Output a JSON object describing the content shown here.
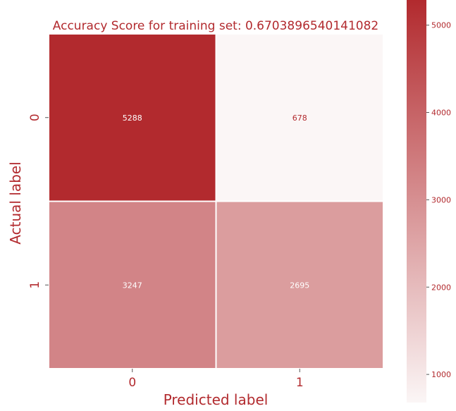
{
  "chart_data": {
    "type": "heatmap",
    "title": "Accuracy Score for training set: 0.6703896540141082",
    "xlabel": "Predicted label",
    "ylabel": "Actual label",
    "x_categories": [
      "0",
      "1"
    ],
    "y_categories": [
      "0",
      "1"
    ],
    "values": [
      [
        5288,
        678
      ],
      [
        3247,
        2695
      ]
    ],
    "colorbar": {
      "min": 678,
      "max": 5288,
      "ticks": [
        1000,
        2000,
        3000,
        4000,
        5000
      ],
      "tick_labels": [
        "1000",
        "2000",
        "3000",
        "4000",
        "5000"
      ],
      "color_low": "#fbf6f6",
      "color_high": "#b22a2e"
    },
    "label_colors": {
      "on_dark": "#ffffff",
      "on_light": "#b22a2e"
    },
    "grid_line_color": "#ffffff"
  }
}
